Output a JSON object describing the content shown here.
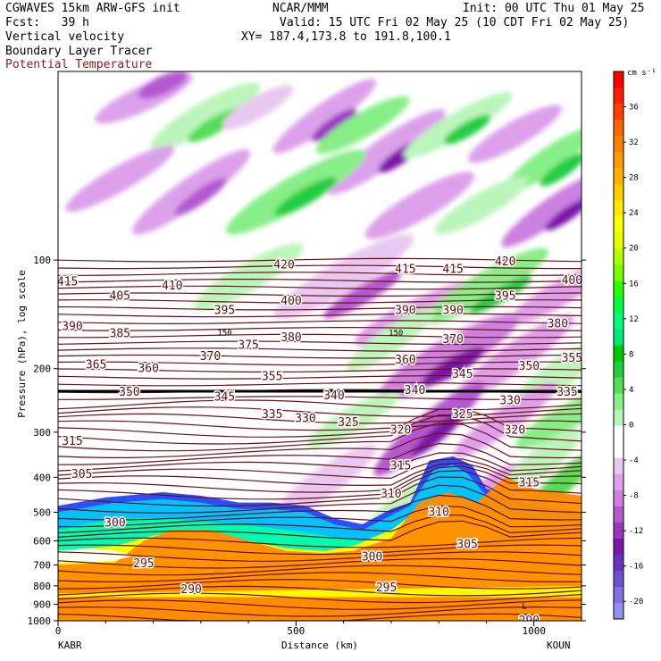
{
  "header": {
    "model": "CGWAVES 15km ARW-GFS init",
    "center": "NCAR/MMM",
    "init": "Init: 00 UTC Thu 01 May 25",
    "fcst": "Fcst:   39 h",
    "valid": "Valid: 15 UTC Fri 02 May 25 (10 CDT Fri 02 May 25)",
    "field1": "Vertical velocity",
    "xy": "XY= 187.4,173.8 to 191.8,100.1",
    "field2": "Boundary Layer Tracer",
    "field3": "Potential Temperature"
  },
  "colors": {
    "theta_contour": "#6b0f1a",
    "field3_text": "#8b1a1a"
  },
  "chart_data": {
    "type": "cross-section",
    "xlabel": "Distance (km)",
    "ylabel": "Pressure (hPa), log scale",
    "xlim": [
      0,
      1100
    ],
    "ylim": [
      1000,
      30
    ],
    "y_log_scale": true,
    "x_ticks": [
      0,
      500,
      1000
    ],
    "y_ticks": [
      100,
      200,
      300,
      400,
      500,
      600,
      700,
      800,
      900,
      1000
    ],
    "left_endpoint": "KABR",
    "right_endpoint": "KOUN",
    "colorbar": {
      "unit": "cm s⁻¹",
      "tick_labels": [
        "36",
        "32",
        "28",
        "24",
        "20",
        "16",
        "12",
        "8",
        "4",
        "0",
        "-4",
        "-8",
        "-12",
        "-16",
        "-20"
      ],
      "colors": [
        "#ff0000",
        "#ff1e00",
        "#ff4000",
        "#ff6400",
        "#ff7f00",
        "#ff9a00",
        "#ffb000",
        "#ffcc00",
        "#ffea00",
        "#ffff00",
        "#e6ff00",
        "#b4ff00",
        "#78ff00",
        "#28ff00",
        "#00ff40",
        "#00ff80",
        "#00e87d",
        "#00c800",
        "#22cc44",
        "#55dd55",
        "#88ee88",
        "#bbf5bb",
        "#ffffff",
        "#ffffff",
        "#e8c8f0",
        "#dca0ea",
        "#cc80e0",
        "#b458d0",
        "#9a38c0",
        "#7a18a8",
        "#6a30c0",
        "#7050d0",
        "#8070e0",
        "#9090f0"
      ]
    },
    "theta_contour_labels": [
      {
        "v": "415",
        "x": 20,
        "p": 115
      },
      {
        "v": "410",
        "x": 240,
        "p": 118
      },
      {
        "v": "405",
        "x": 130,
        "p": 126
      },
      {
        "v": "420",
        "x": 475,
        "p": 103
      },
      {
        "v": "415",
        "x": 730,
        "p": 106
      },
      {
        "v": "415",
        "x": 830,
        "p": 106
      },
      {
        "v": "420",
        "x": 940,
        "p": 101
      },
      {
        "v": "400",
        "x": 1080,
        "p": 114
      },
      {
        "v": "400",
        "x": 490,
        "p": 130
      },
      {
        "v": "395",
        "x": 350,
        "p": 138
      },
      {
        "v": "395",
        "x": 940,
        "p": 126
      },
      {
        "v": "390",
        "x": 30,
        "p": 153
      },
      {
        "v": "385",
        "x": 130,
        "p": 160
      },
      {
        "v": "390",
        "x": 730,
        "p": 138
      },
      {
        "v": "390",
        "x": 830,
        "p": 138
      },
      {
        "v": "380",
        "x": 1050,
        "p": 150
      },
      {
        "v": "375",
        "x": 400,
        "p": 172
      },
      {
        "v": "380",
        "x": 490,
        "p": 164
      },
      {
        "v": "370",
        "x": 830,
        "p": 166
      },
      {
        "v": "370",
        "x": 320,
        "p": 185
      },
      {
        "v": "365",
        "x": 80,
        "p": 195
      },
      {
        "v": "360",
        "x": 190,
        "p": 200
      },
      {
        "v": "360",
        "x": 730,
        "p": 189
      },
      {
        "v": "355",
        "x": 450,
        "p": 210
      },
      {
        "v": "345",
        "x": 850,
        "p": 207
      },
      {
        "v": "350",
        "x": 990,
        "p": 197
      },
      {
        "v": "355",
        "x": 1080,
        "p": 187
      },
      {
        "v": "350",
        "x": 150,
        "p": 232
      },
      {
        "v": "345",
        "x": 350,
        "p": 240
      },
      {
        "v": "340",
        "x": 580,
        "p": 238
      },
      {
        "v": "340",
        "x": 750,
        "p": 230
      },
      {
        "v": "330",
        "x": 950,
        "p": 245
      },
      {
        "v": "335",
        "x": 1070,
        "p": 232
      },
      {
        "v": "335",
        "x": 450,
        "p": 268
      },
      {
        "v": "330",
        "x": 520,
        "p": 275
      },
      {
        "v": "325",
        "x": 610,
        "p": 282
      },
      {
        "v": "325",
        "x": 850,
        "p": 268
      },
      {
        "v": "320",
        "x": 720,
        "p": 296
      },
      {
        "v": "320",
        "x": 960,
        "p": 296
      },
      {
        "v": "315",
        "x": 30,
        "p": 318
      },
      {
        "v": "315",
        "x": 720,
        "p": 372
      },
      {
        "v": "315",
        "x": 990,
        "p": 414
      },
      {
        "v": "305",
        "x": 50,
        "p": 392
      },
      {
        "v": "310",
        "x": 700,
        "p": 445
      },
      {
        "v": "310",
        "x": 800,
        "p": 500
      },
      {
        "v": "300",
        "x": 120,
        "p": 535
      },
      {
        "v": "305",
        "x": 860,
        "p": 615
      },
      {
        "v": "300",
        "x": 660,
        "p": 665
      },
      {
        "v": "295",
        "x": 180,
        "p": 695
      },
      {
        "v": "295",
        "x": 690,
        "p": 810
      },
      {
        "v": "290",
        "x": 280,
        "p": 820
      },
      {
        "v": "290",
        "x": 990,
        "p": 1000
      }
    ],
    "annotations": [
      {
        "text": "150",
        "x": 350,
        "p": 158
      },
      {
        "text": "150",
        "x": 710,
        "p": 158
      },
      {
        "text": "L",
        "x": 980,
        "p": 905
      }
    ]
  }
}
